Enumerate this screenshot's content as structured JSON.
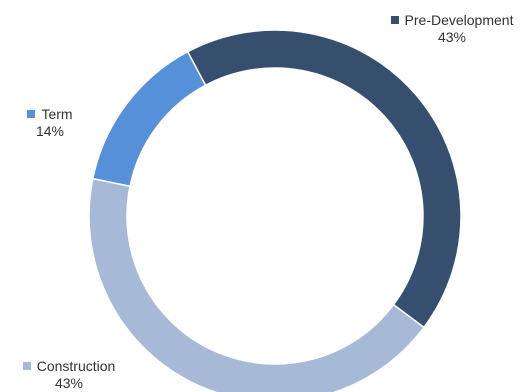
{
  "chart_data": {
    "type": "pie",
    "variant": "donut",
    "slices": [
      {
        "label": "Pre-Development",
        "value": 43,
        "percent_label": "43%",
        "color": "#374f6f"
      },
      {
        "label": "Construction",
        "value": 43,
        "percent_label": "43%",
        "color": "#a6bad8"
      },
      {
        "label": "Term",
        "value": 14,
        "percent_label": "14%",
        "color": "#5590d8"
      }
    ],
    "start_angle_deg": -28,
    "direction": "clockwise",
    "legend": "none"
  }
}
